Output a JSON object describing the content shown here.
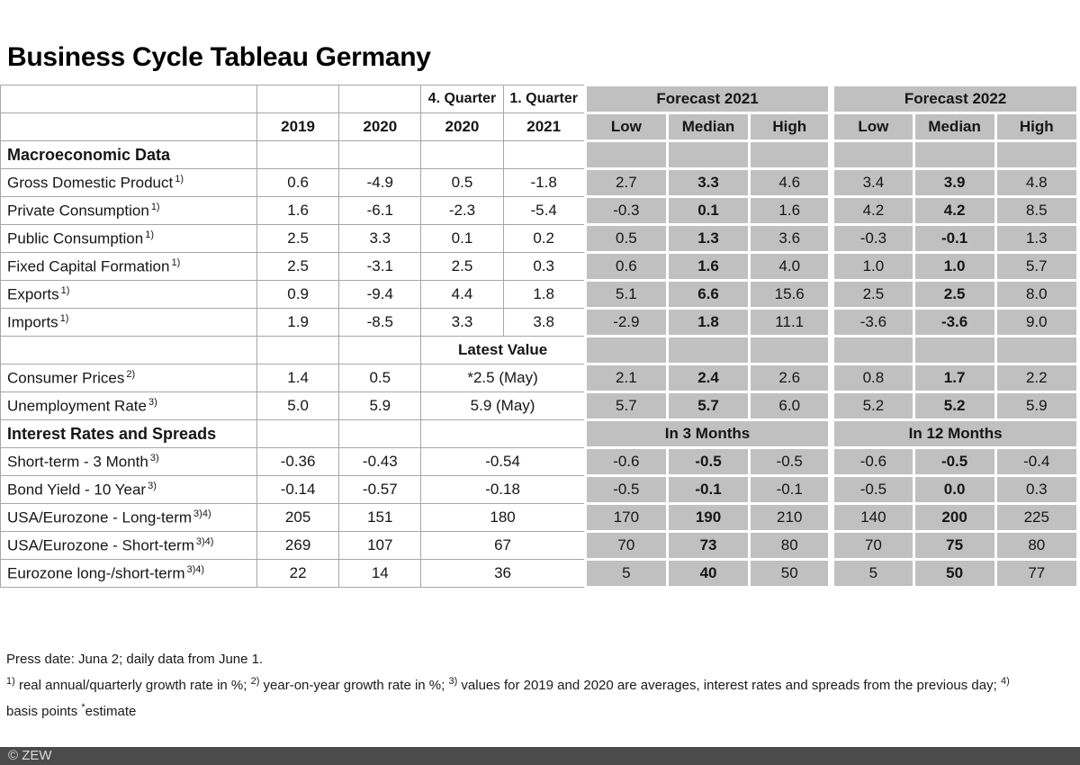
{
  "title": "Business Cycle Tableau Germany",
  "header": {
    "quarter_top": [
      "4. Quarter",
      "1. Quarter"
    ],
    "years": [
      "2019",
      "2020",
      "2020",
      "2021"
    ],
    "forecast2021": "Forecast 2021",
    "forecast2022": "Forecast 2022",
    "range_labels": [
      "Low",
      "Median",
      "High"
    ]
  },
  "rows": [
    {
      "kind": "section",
      "label": "Macroeconomic Data",
      "years": [
        "",
        ""
      ],
      "quarters": [
        "",
        ""
      ],
      "forecast": [
        "",
        "",
        "",
        "",
        "",
        ""
      ]
    },
    {
      "kind": "data",
      "label": "Gross Domestic Product",
      "sup": "1)",
      "years": [
        "0.6",
        "-4.9"
      ],
      "quarters": [
        "0.5",
        "-1.8"
      ],
      "forecast": [
        "2.7",
        "3.3",
        "4.6",
        "3.4",
        "3.9",
        "4.8"
      ]
    },
    {
      "kind": "data",
      "label": "Private Consumption",
      "sup": "1)",
      "years": [
        "1.6",
        "-6.1"
      ],
      "quarters": [
        "-2.3",
        "-5.4"
      ],
      "forecast": [
        "-0.3",
        "0.1",
        "1.6",
        "4.2",
        "4.2",
        "8.5"
      ]
    },
    {
      "kind": "data",
      "label": "Public Consumption",
      "sup": "1)",
      "years": [
        "2.5",
        "3.3"
      ],
      "quarters": [
        "0.1",
        "0.2"
      ],
      "forecast": [
        "0.5",
        "1.3",
        "3.6",
        "-0.3",
        "-0.1",
        "1.3"
      ]
    },
    {
      "kind": "data",
      "label": "Fixed Capital Formation",
      "sup": "1)",
      "years": [
        "2.5",
        "-3.1"
      ],
      "quarters": [
        "2.5",
        "0.3"
      ],
      "forecast": [
        "0.6",
        "1.6",
        "4.0",
        "1.0",
        "1.0",
        "5.7"
      ]
    },
    {
      "kind": "data",
      "label": "Exports",
      "sup": "1)",
      "years": [
        "0.9",
        "-9.4"
      ],
      "quarters": [
        "4.4",
        "1.8"
      ],
      "forecast": [
        "5.1",
        "6.6",
        "15.6",
        "2.5",
        "2.5",
        "8.0"
      ]
    },
    {
      "kind": "data",
      "label": "Imports",
      "sup": "1)",
      "years": [
        "1.9",
        "-8.5"
      ],
      "quarters": [
        "3.3",
        "3.8"
      ],
      "forecast": [
        "-2.9",
        "1.8",
        "11.1",
        "-3.6",
        "-3.6",
        "9.0"
      ]
    },
    {
      "kind": "subheader",
      "label": "",
      "years": [
        "",
        ""
      ],
      "merged": "Latest Value",
      "forecast": [
        "",
        "",
        "",
        "",
        "",
        ""
      ]
    },
    {
      "kind": "data",
      "label": "Consumer Prices",
      "sup": "2)",
      "years": [
        "1.4",
        "0.5"
      ],
      "merged": "*2.5 (May)",
      "forecast": [
        "2.1",
        "2.4",
        "2.6",
        "0.8",
        "1.7",
        "2.2"
      ]
    },
    {
      "kind": "data",
      "label": "Unemployment Rate",
      "sup": "3)",
      "years": [
        "5.0",
        "5.9"
      ],
      "merged": "5.9 (May)",
      "forecast": [
        "5.7",
        "5.7",
        "6.0",
        "5.2",
        "5.2",
        "5.9"
      ]
    },
    {
      "kind": "section",
      "label": "Interest Rates and Spreads",
      "years": [
        "",
        ""
      ],
      "merged": "",
      "forecast_merged": [
        "In 3 Months",
        "In 12 Months"
      ]
    },
    {
      "kind": "data",
      "label": "Short-term - 3 Month",
      "sup": "3)",
      "years": [
        "-0.36",
        "-0.43"
      ],
      "merged": "-0.54",
      "forecast": [
        "-0.6",
        "-0.5",
        "-0.5",
        "-0.6",
        "-0.5",
        "-0.4"
      ]
    },
    {
      "kind": "data",
      "label": "Bond Yield - 10 Year",
      "sup": "3)",
      "years": [
        "-0.14",
        "-0.57"
      ],
      "merged": "-0.18",
      "forecast": [
        "-0.5",
        "-0.1",
        "-0.1",
        "-0.5",
        "0.0",
        "0.3"
      ]
    },
    {
      "kind": "data",
      "label": "USA/Eurozone - Long-term",
      "sup": "3)4)",
      "years": [
        "205",
        "151"
      ],
      "merged": "180",
      "forecast": [
        "170",
        "190",
        "210",
        "140",
        "200",
        "225"
      ]
    },
    {
      "kind": "data",
      "label": "USA/Eurozone - Short-term",
      "sup": "3)4)",
      "years": [
        "269",
        "107"
      ],
      "merged": "67",
      "forecast": [
        "70",
        "73",
        "80",
        "70",
        "75",
        "80"
      ]
    },
    {
      "kind": "data",
      "label": "Eurozone long-/short-term",
      "sup": "3)4)",
      "years": [
        "22",
        "14"
      ],
      "merged": "36",
      "forecast": [
        "5",
        "40",
        "50",
        "5",
        "50",
        "77"
      ]
    }
  ],
  "notes": {
    "press_date": "Press date: Juna 2; daily data from June 1.",
    "fn1_sup": "1)",
    "fn1": " real annual/quarterly growth rate in %; ",
    "fn2_sup": "2)",
    "fn2": " year-on-year growth rate in %; ",
    "fn3_sup": "3)",
    "fn3": " values for 2019 and 2020 are averages, interest rates and spreads from the previous day; ",
    "fn4_sup": "4)",
    "fn_line2_pre": "basis points ",
    "fn_star": "*",
    "fn_line2_post": "estimate"
  },
  "bottom_bar": {
    "label": "© ZEW"
  },
  "colors": {
    "forecast_bg": "#c0c0c0",
    "grid": "#a6a6a6",
    "bar_bg": "#4b4b4b",
    "bar_text": "#dcdcdc"
  }
}
